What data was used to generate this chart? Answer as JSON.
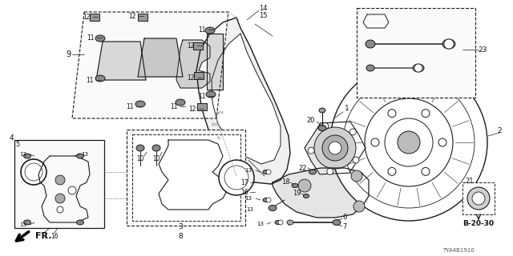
{
  "bg_color": "#ffffff",
  "fig_width": 6.4,
  "fig_height": 3.2,
  "dpi": 100,
  "bottom_right_ref": "B-20-30",
  "catalog_code": "TYA4B1910",
  "fr_label": "FR.",
  "line_color": "#1a1a1a",
  "label_color": "#111111"
}
